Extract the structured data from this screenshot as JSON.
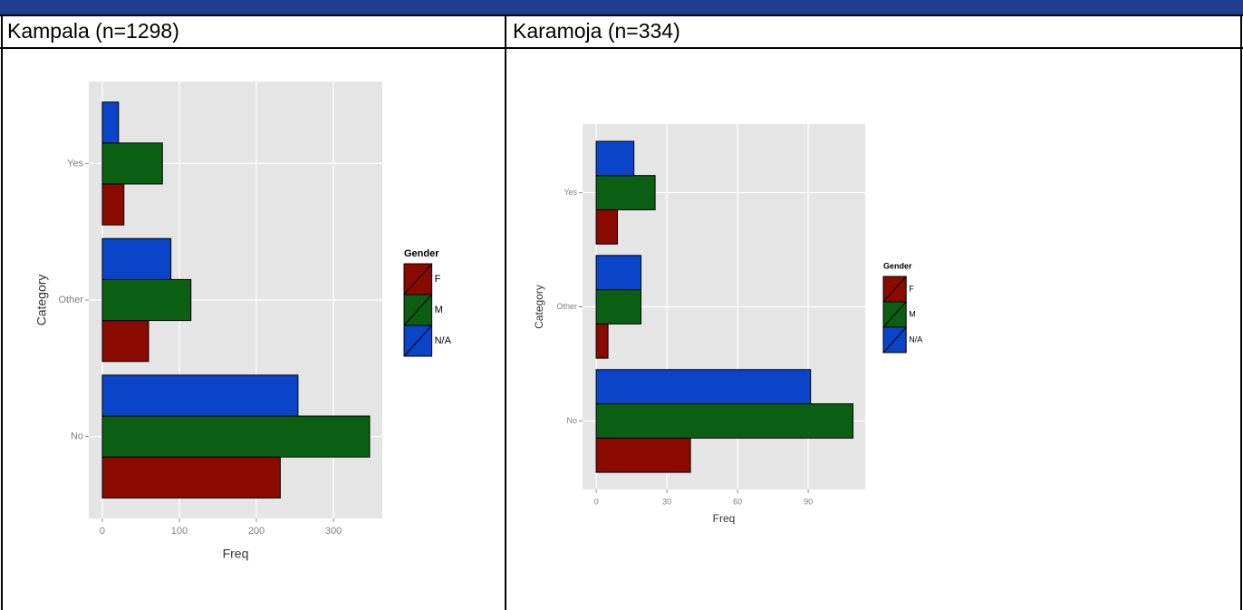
{
  "table": {
    "headers": [
      "Kampala (n=1298)",
      "Karamoja (n=334)"
    ]
  },
  "chart_data": [
    {
      "type": "bar",
      "orientation": "horizontal",
      "x_label": "Freq",
      "y_label": "Category",
      "legend_title": "Gender",
      "categories": [
        "No",
        "Other",
        "Yes"
      ],
      "series": [
        {
          "name": "F",
          "color": "#8b0a00",
          "values": [
            231,
            60,
            28
          ]
        },
        {
          "name": "M",
          "color": "#0b5f13",
          "values": [
            347,
            115,
            78
          ]
        },
        {
          "name": "N/A",
          "color": "#0a44c8",
          "values": [
            254,
            89,
            21
          ]
        }
      ],
      "xlim": [
        -17.6,
        363.5
      ],
      "xticks": [
        0,
        100,
        200,
        300
      ],
      "grid": true,
      "legend": "right"
    },
    {
      "type": "bar",
      "orientation": "horizontal",
      "x_label": "Freq",
      "y_label": "Category",
      "legend_title": "Gender",
      "categories": [
        "No",
        "Other",
        "Yes"
      ],
      "series": [
        {
          "name": "F",
          "color": "#8b0a00",
          "values": [
            40,
            5,
            9
          ]
        },
        {
          "name": "M",
          "color": "#0b5f13",
          "values": [
            109,
            19,
            25
          ]
        },
        {
          "name": "N/A",
          "color": "#0a44c8",
          "values": [
            91,
            19,
            16
          ]
        }
      ],
      "xlim": [
        -5.8,
        114.2
      ],
      "xticks": [
        0,
        30,
        60,
        90
      ],
      "grid": true,
      "legend": "right"
    }
  ]
}
